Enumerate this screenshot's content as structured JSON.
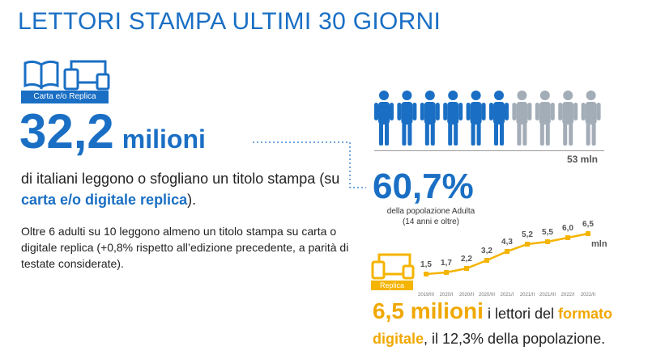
{
  "title": "LETTORI  STAMPA ULTIMI 30 GIORNI",
  "print_label": "Carta e/o Replica",
  "main_value": "32,2",
  "main_unit": "milioni",
  "desc_prefix": "di italiani leggono o sfogliano un titolo stampa (su ",
  "desc_highlight": "carta e/o digitale replica",
  "desc_suffix": ").",
  "desc2": "Oltre 6 adulti su 10 leggono almeno un titolo stampa su carta o digitale replica (+0,8% rispetto all’edizione precedente, a parità di testate considerate).",
  "population_label": "53 mln",
  "people_total": 10,
  "people_filled": 6,
  "percent": "60,7%",
  "percent_sub_1": "della popolazione Adulta",
  "percent_sub_2": "(14 anni e oltre)",
  "replica_label": "Replica",
  "digital_value": "6,5 milioni",
  "digital_text_1": " i lettori del ",
  "digital_highlight_1": "formato",
  "digital_highlight_2": "digitale",
  "digital_text_2": ", il 12,3% della popolazione.",
  "colors": {
    "blue": "#1a6fc4",
    "grey": "#a3adb8",
    "yellow": "#f4b400"
  },
  "chart_data": {
    "type": "line",
    "x": [
      "2019/III",
      "2020/I",
      "2020/II",
      "2020/III",
      "2021/I",
      "2021/II",
      "2021/III",
      "2022/I",
      "2022/II"
    ],
    "series": [
      {
        "values": [
          1.5,
          1.7,
          2.2,
          3.2,
          4.3,
          5.2,
          5.5,
          6.0,
          6.5
        ]
      }
    ],
    "value_labels": [
      "1,5",
      "1,7",
      "2,2",
      "3,2",
      "4,3",
      "5,2",
      "5,5",
      "6,0",
      "6,5"
    ],
    "unit_label": "mln",
    "color": "#f4b400",
    "ylim": [
      0,
      7
    ]
  }
}
